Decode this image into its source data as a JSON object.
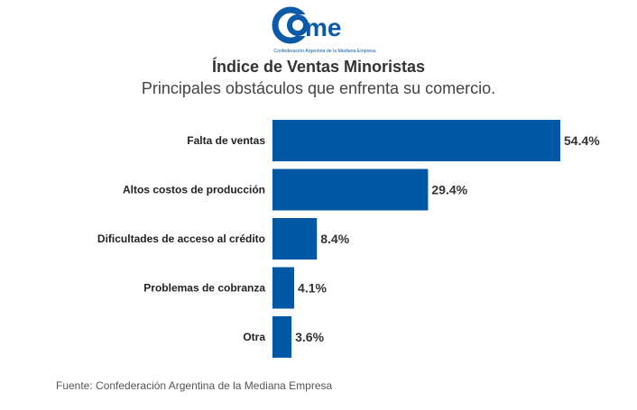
{
  "logo": {
    "text": "came",
    "tagline": "Confederación Argentina de la Mediana Empresa"
  },
  "title": "Índice de Ventas Minoristas",
  "subtitle": "Principales obstáculos que enfrenta su comercio.",
  "source": "Fuente: Confederación Argentina de la Mediana Empresa",
  "chart_data": {
    "type": "bar",
    "orientation": "horizontal",
    "categories": [
      "Falta de ventas",
      "Altos costos de producción",
      "Dificultades de acceso al crédito",
      "Problemas de cobranza",
      "Otra"
    ],
    "values": [
      54.4,
      29.4,
      8.4,
      4.1,
      3.6
    ],
    "labels": [
      "54.4%",
      "29.4%",
      "8.4%",
      "4.1%",
      "3.6%"
    ],
    "unit": "%",
    "bar_color": "#0057a3",
    "grid": false
  }
}
